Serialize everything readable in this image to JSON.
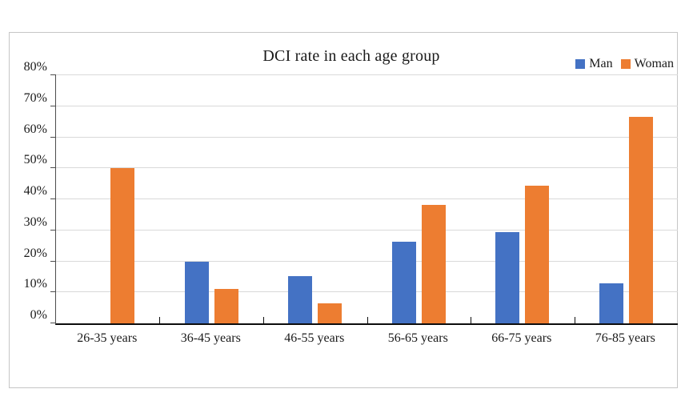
{
  "chart_data": {
    "type": "bar",
    "title": "DCI rate in each age group",
    "categories": [
      "26-35 years",
      "36-45 years",
      "46-55 years",
      "56-65 years",
      "66-75 years",
      "76-85 years"
    ],
    "series": [
      {
        "name": "Man",
        "color": "#4472C4",
        "values": [
          0,
          20,
          15.2,
          26.3,
          29.4,
          13
        ]
      },
      {
        "name": "Woman",
        "color": "#ED7D31",
        "values": [
          50,
          11.1,
          6.5,
          38.2,
          44.4,
          66.7
        ]
      }
    ],
    "xlabel": "",
    "ylabel": "",
    "ylim": [
      0,
      80
    ],
    "ytick_labels": [
      "0%",
      "10%",
      "20%",
      "30%",
      "40%",
      "50%",
      "60%",
      "70%",
      "80%"
    ],
    "grid": true,
    "legend_position": "top-right"
  },
  "colors": {
    "gridline": "#d9d9d9",
    "y_axis": "#4d4d4d",
    "x_axis": "#0d0d0d",
    "frame_border": "#c6c6c6",
    "background": "#ffffff",
    "text": "#1a1a1a"
  }
}
